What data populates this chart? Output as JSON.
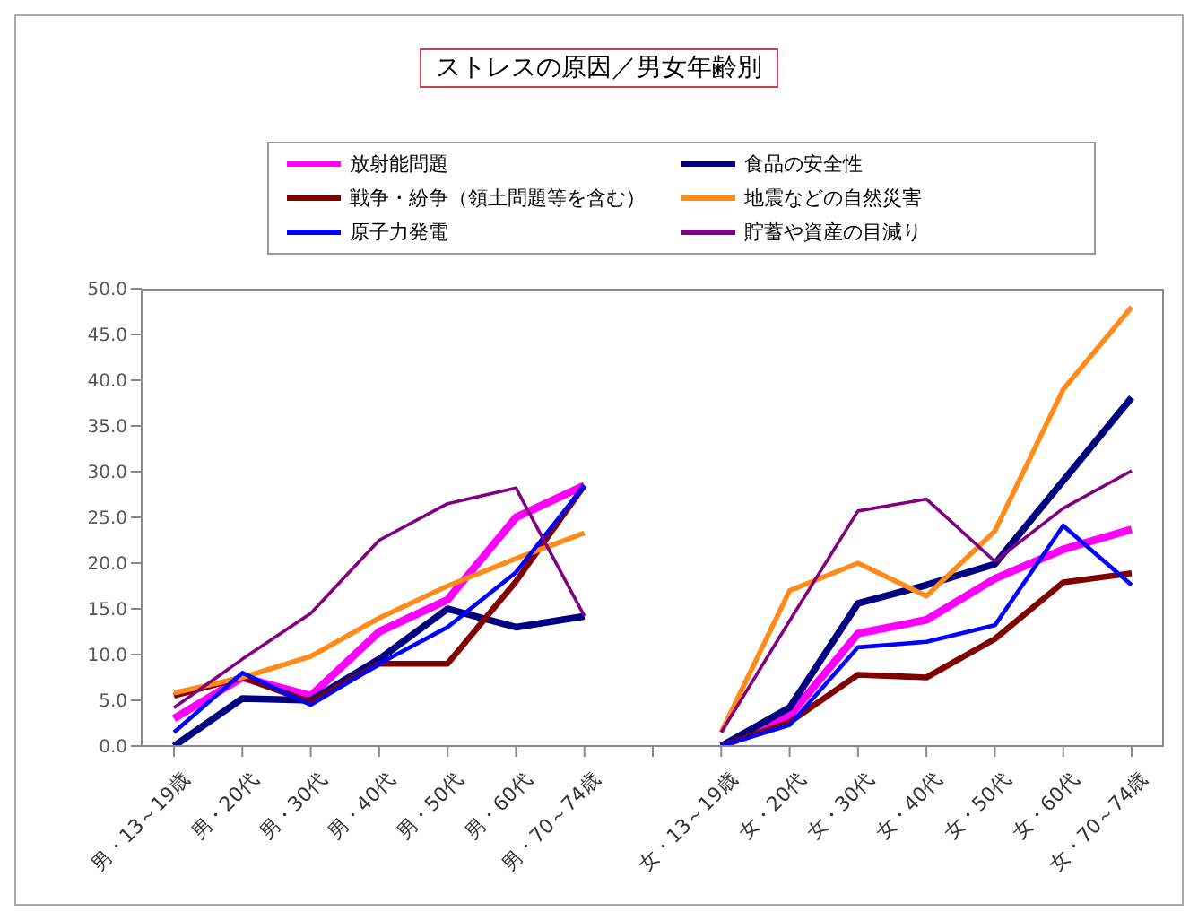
{
  "chart_data": {
    "type": "line",
    "title": "ストレスの原因／男女年齢別",
    "categories": [
      "男・13～19歳",
      "男・20代",
      "男・30代",
      "男・40代",
      "男・50代",
      "男・60代",
      "男・70～74歳",
      null,
      "女・13～19歳",
      "女・20代",
      "女・30代",
      "女・40代",
      "女・50代",
      "女・60代",
      "女・70～74歳"
    ],
    "series": [
      {
        "name": "放射能問題",
        "color": "#ff00ff",
        "values": [
          3,
          7.5,
          5.5,
          12.5,
          16,
          25,
          28.5,
          null,
          0,
          3.3,
          12.3,
          13.8,
          18.3,
          21.5,
          23.7
        ]
      },
      {
        "name": "食品の安全性",
        "color": "#000080",
        "values": [
          0,
          5.2,
          5,
          9.5,
          15,
          13,
          14.2,
          null,
          0,
          4.2,
          15.6,
          17.6,
          19.9,
          29,
          38.1
        ]
      },
      {
        "name": "戦争・紛争（領土問題等を含む）",
        "color": "#800000",
        "values": [
          5.5,
          7.5,
          4.8,
          9,
          9,
          18,
          28.5,
          null,
          0,
          2.6,
          7.8,
          7.5,
          11.7,
          17.9,
          18.9
        ]
      },
      {
        "name": "地震などの自然災害",
        "color": "#ff8c1a",
        "values": [
          5.8,
          7.5,
          9.8,
          14,
          17.5,
          20.5,
          23.3,
          null,
          1.5,
          17,
          20,
          16.4,
          23.5,
          39,
          48
        ]
      },
      {
        "name": "原子力発電",
        "color": "#0000ff",
        "values": [
          1.5,
          8,
          4.5,
          9,
          13,
          19,
          28.5,
          null,
          0,
          2.3,
          10.8,
          11.4,
          13.2,
          24.1,
          17.6
        ]
      },
      {
        "name": "貯蓄や資産の目減り",
        "color": "#800080",
        "values": [
          4.2,
          9.5,
          14.5,
          22.5,
          26.5,
          28.2,
          14.2,
          null,
          1.5,
          13.7,
          25.7,
          27,
          20.2,
          26,
          30.1
        ]
      }
    ],
    "ylim": [
      0,
      50
    ],
    "yticks": [
      {
        "value": 0,
        "label": "0.0"
      },
      {
        "value": 5,
        "label": "5.0"
      },
      {
        "value": 10,
        "label": "10.0"
      },
      {
        "value": 15,
        "label": "15.0"
      },
      {
        "value": 20,
        "label": "20.0"
      },
      {
        "value": 25,
        "label": "25.0"
      },
      {
        "value": 30,
        "label": "30.0"
      },
      {
        "value": 35,
        "label": "35.0"
      },
      {
        "value": 40,
        "label": "40.0"
      },
      {
        "value": 45,
        "label": "45.0"
      },
      {
        "value": 50,
        "label": "50.0"
      }
    ],
    "legend": "top",
    "grid": false,
    "marker": "none",
    "line_style": "solid"
  }
}
